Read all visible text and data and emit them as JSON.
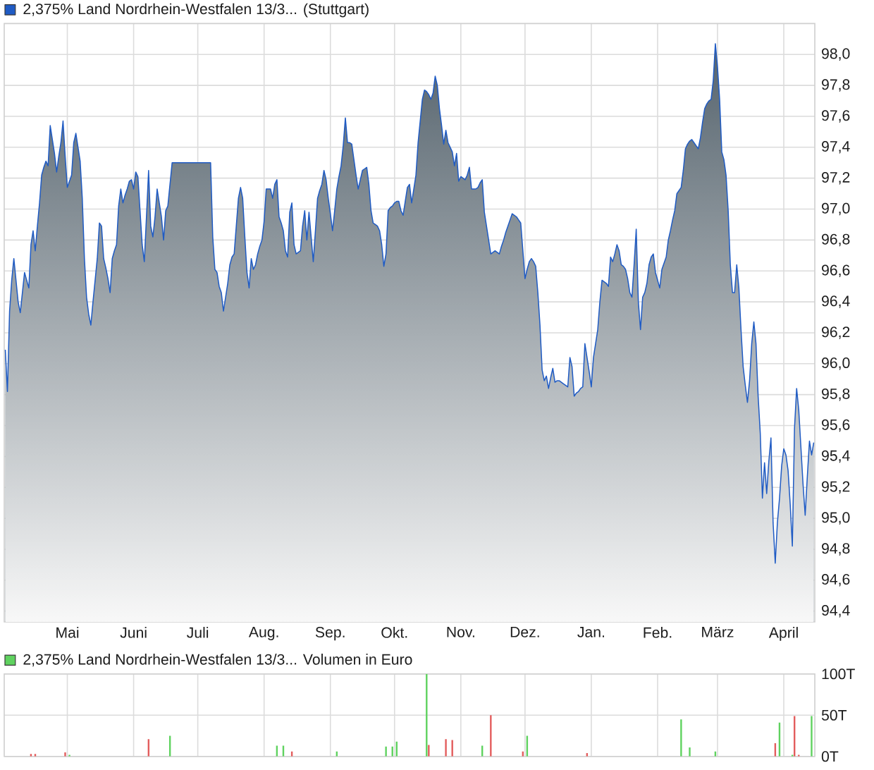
{
  "chart_data": [
    {
      "type": "area",
      "legend": "top left",
      "grid": true,
      "categories": [
        null,
        null,
        null,
        null,
        null,
        null,
        null,
        null,
        null,
        null,
        null,
        null,
        null,
        null,
        null,
        null,
        null,
        null,
        null,
        null,
        null,
        null,
        null,
        null,
        null,
        null,
        null,
        null,
        null,
        "Mai",
        null,
        null,
        null,
        null,
        null,
        null,
        null,
        null,
        null,
        null,
        null,
        null,
        null,
        null,
        null,
        null,
        null,
        null,
        null,
        null,
        null,
        null,
        null,
        null,
        null,
        null,
        null,
        null,
        null,
        null,
        "Juni",
        null,
        null,
        null,
        null,
        null,
        null,
        null,
        null,
        null,
        null,
        null,
        null,
        null,
        null,
        null,
        null,
        null,
        null,
        null,
        null,
        null,
        null,
        null,
        null,
        null,
        null,
        null,
        null,
        null,
        "Juli",
        null,
        null,
        null,
        null,
        null,
        null,
        null,
        null,
        null,
        null,
        null,
        null,
        null,
        null,
        null,
        null,
        null,
        null,
        null,
        null,
        null,
        null,
        null,
        null,
        null,
        null,
        null,
        null,
        null,
        null,
        "Aug.",
        null,
        null,
        null,
        null,
        null,
        null,
        null,
        null,
        null,
        null,
        null,
        null,
        null,
        null,
        null,
        null,
        null,
        null,
        null,
        null,
        null,
        null,
        null,
        null,
        null,
        null,
        null,
        null,
        null,
        null,
        "Sep.",
        null,
        null,
        null,
        null,
        null,
        null,
        null,
        null,
        null,
        null,
        null,
        null,
        null,
        null,
        null,
        null,
        null,
        null,
        null,
        null,
        null,
        null,
        null,
        null,
        null,
        null,
        null,
        null,
        null,
        "Okt.",
        null,
        null,
        null,
        null,
        null,
        null,
        null,
        null,
        null,
        null,
        null,
        null,
        null,
        null,
        null,
        null,
        null,
        null,
        null,
        null,
        null,
        null,
        null,
        null,
        null,
        null,
        null,
        null,
        null,
        null,
        "Nov.",
        null,
        null,
        null,
        null,
        null,
        null,
        null,
        null,
        null,
        null,
        null,
        null,
        null,
        null,
        null,
        null,
        null,
        null,
        null,
        null,
        null,
        null,
        null,
        null,
        null,
        null,
        null,
        null,
        null,
        "Dez.",
        null,
        null,
        null,
        null,
        null,
        null,
        null,
        null,
        null,
        null,
        null,
        null,
        null,
        null,
        null,
        null,
        null,
        null,
        null,
        null,
        null,
        null,
        null,
        null,
        null,
        null,
        null,
        null,
        null,
        null,
        "Jan.",
        null,
        null,
        null,
        null,
        null,
        null,
        null,
        null,
        null,
        null,
        null,
        null,
        null,
        null,
        null,
        null,
        null,
        null,
        null,
        null,
        null,
        null,
        null,
        null,
        null,
        null,
        null,
        null,
        null,
        null,
        "Feb.",
        null,
        null,
        null,
        null,
        null,
        null,
        null,
        null,
        null,
        null,
        null,
        null,
        null,
        null,
        null,
        null,
        null,
        null,
        null,
        null,
        null,
        null,
        null,
        null,
        null,
        null,
        null,
        "März",
        null,
        null,
        null,
        null,
        null,
        null,
        null,
        null,
        null,
        null,
        null,
        null,
        null,
        null,
        null,
        null,
        null,
        null,
        null,
        null,
        null,
        null,
        null,
        null,
        null,
        null,
        null,
        null,
        null,
        null,
        "April",
        null,
        null,
        null,
        null,
        null,
        null,
        null,
        null,
        null,
        null,
        null,
        null,
        null,
        null
      ],
      "ylim": [
        94.33,
        98.2
      ],
      "yticks": [
        {
          "value": 94.4,
          "label": "94,4"
        },
        {
          "value": 94.6,
          "label": "94,6"
        },
        {
          "value": 94.8,
          "label": "94,8"
        },
        {
          "value": 95.0,
          "label": "95,0"
        },
        {
          "value": 95.2,
          "label": "95,2"
        },
        {
          "value": 95.4,
          "label": "95,4"
        },
        {
          "value": 95.6,
          "label": "95,6"
        },
        {
          "value": 95.8,
          "label": "95,8"
        },
        {
          "value": 96.0,
          "label": "96,0"
        },
        {
          "value": 96.2,
          "label": "96,2"
        },
        {
          "value": 96.4,
          "label": "96,4"
        },
        {
          "value": 96.6,
          "label": "96,6"
        },
        {
          "value": 96.8,
          "label": "96,8"
        },
        {
          "value": 97.0,
          "label": "97,0"
        },
        {
          "value": 97.2,
          "label": "97,2"
        },
        {
          "value": 97.4,
          "label": "97,4"
        },
        {
          "value": 97.6,
          "label": "97,6"
        },
        {
          "value": 97.8,
          "label": "97,8"
        },
        {
          "value": 98.0,
          "label": "98,0"
        }
      ],
      "series": [
        {
          "name": "2,375% Land Nordrhein-Westfalen 13/3... (Stuttgart)",
          "color": "#1f5bc4",
          "values": [
            96.09,
            95.82,
            96.34,
            96.54,
            96.68,
            96.54,
            96.4,
            96.33,
            96.46,
            96.59,
            96.54,
            96.49,
            96.77,
            96.86,
            96.73,
            96.89,
            97.04,
            97.22,
            97.27,
            97.31,
            97.28,
            97.54,
            97.45,
            97.36,
            97.24,
            97.34,
            97.43,
            97.57,
            97.34,
            97.14,
            97.18,
            97.22,
            97.43,
            97.49,
            97.4,
            97.31,
            97.07,
            96.68,
            96.43,
            96.32,
            96.25,
            96.4,
            96.54,
            96.68,
            96.91,
            96.89,
            96.68,
            96.62,
            96.55,
            96.46,
            96.68,
            96.73,
            96.77,
            97.02,
            97.13,
            97.04,
            97.09,
            97.13,
            97.18,
            97.19,
            97.13,
            97.24,
            97.21,
            96.99,
            96.77,
            96.66,
            96.95,
            97.25,
            96.89,
            96.82,
            96.95,
            97.13,
            97.04,
            96.95,
            96.8,
            96.99,
            97.02,
            97.16,
            97.3,
            97.3,
            97.3,
            97.3,
            97.3,
            97.3,
            97.3,
            97.3,
            97.3,
            97.3,
            97.3,
            97.3,
            97.3,
            97.3,
            97.3,
            97.3,
            97.3,
            97.3,
            97.3,
            96.82,
            96.61,
            96.59,
            96.5,
            96.46,
            96.34,
            96.43,
            96.52,
            96.64,
            96.69,
            96.71,
            96.89,
            97.07,
            97.14,
            97.07,
            96.82,
            96.59,
            96.49,
            96.68,
            96.61,
            96.64,
            96.71,
            96.76,
            96.8,
            96.92,
            97.13,
            97.13,
            97.13,
            97.07,
            97.16,
            97.19,
            96.95,
            96.91,
            96.86,
            96.73,
            96.69,
            96.98,
            97.04,
            96.77,
            96.71,
            96.72,
            96.73,
            96.89,
            96.99,
            96.8,
            96.98,
            96.82,
            96.66,
            96.86,
            97.07,
            97.12,
            97.16,
            97.25,
            97.19,
            97.07,
            96.97,
            96.86,
            96.99,
            97.13,
            97.21,
            97.28,
            97.41,
            97.59,
            97.43,
            97.43,
            97.42,
            97.32,
            97.22,
            97.13,
            97.19,
            97.25,
            97.26,
            97.27,
            97.16,
            96.99,
            96.91,
            96.9,
            96.89,
            96.86,
            96.77,
            96.63,
            96.71,
            96.99,
            97.01,
            97.02,
            97.04,
            97.05,
            97.05,
            96.99,
            96.96,
            97.05,
            97.14,
            97.16,
            97.04,
            97.13,
            97.22,
            97.43,
            97.57,
            97.71,
            97.77,
            97.76,
            97.74,
            97.71,
            97.75,
            97.86,
            97.8,
            97.65,
            97.54,
            97.42,
            97.51,
            97.43,
            97.4,
            97.37,
            97.28,
            97.36,
            97.18,
            97.21,
            97.2,
            97.19,
            97.22,
            97.27,
            97.13,
            97.13,
            97.13,
            97.14,
            97.17,
            97.19,
            96.98,
            96.89,
            96.8,
            96.71,
            96.72,
            96.73,
            96.72,
            96.71,
            96.76,
            96.8,
            96.85,
            96.89,
            96.93,
            96.97,
            96.96,
            96.95,
            96.93,
            96.91,
            96.73,
            96.55,
            96.61,
            96.66,
            96.68,
            96.66,
            96.63,
            96.46,
            96.25,
            95.96,
            95.89,
            95.92,
            95.84,
            95.91,
            95.97,
            95.88,
            95.89,
            95.89,
            95.88,
            95.87,
            95.86,
            95.85,
            96.04,
            95.98,
            95.79,
            95.81,
            95.82,
            95.84,
            95.85,
            96.13,
            96.04,
            95.95,
            95.85,
            96.04,
            96.13,
            96.22,
            96.4,
            96.54,
            96.53,
            96.52,
            96.5,
            96.69,
            96.66,
            96.71,
            96.77,
            96.73,
            96.64,
            96.63,
            96.61,
            96.55,
            96.46,
            96.43,
            96.64,
            96.87,
            96.4,
            96.22,
            96.43,
            96.46,
            96.52,
            96.64,
            96.69,
            96.71,
            96.59,
            96.54,
            96.49,
            96.61,
            96.65,
            96.69,
            96.8,
            96.86,
            96.93,
            96.99,
            97.1,
            97.12,
            97.14,
            97.25,
            97.39,
            97.42,
            97.44,
            97.45,
            97.43,
            97.41,
            97.39,
            97.46,
            97.56,
            97.65,
            97.68,
            97.7,
            97.71,
            97.83,
            98.07,
            97.92,
            97.71,
            97.37,
            97.32,
            97.22,
            96.99,
            96.64,
            96.46,
            96.46,
            96.64,
            96.49,
            96.22,
            95.98,
            95.86,
            95.75,
            95.89,
            96.13,
            96.27,
            96.13,
            95.79,
            95.55,
            95.13,
            95.36,
            95.16,
            95.37,
            95.52,
            94.97,
            94.71,
            94.97,
            95.13,
            95.34,
            95.45,
            95.41,
            95.31,
            95.09,
            94.82,
            95.58,
            95.84,
            95.7,
            95.46,
            95.22,
            95.02,
            95.27,
            95.5,
            95.41,
            95.49
          ]
        }
      ]
    },
    {
      "type": "bar",
      "legend": "top left",
      "grid": true,
      "categories": [
        null,
        null,
        null,
        null,
        null,
        null,
        null,
        null,
        null,
        null,
        null,
        null,
        null,
        null,
        null,
        null,
        null,
        null,
        null,
        null,
        null,
        null,
        null,
        null,
        null,
        null,
        null,
        null,
        null,
        null,
        null,
        null,
        null,
        null,
        null,
        null,
        null,
        null,
        null,
        null,
        null,
        null,
        null,
        null,
        null,
        null,
        null,
        null,
        null,
        null,
        null,
        null,
        null,
        null,
        null,
        null,
        null,
        null,
        null,
        null,
        null,
        null,
        null,
        null,
        null,
        null,
        null,
        null,
        null,
        null,
        null,
        null,
        null,
        null,
        null,
        null,
        null,
        null,
        null,
        null,
        null,
        null,
        null,
        null,
        null,
        null,
        null,
        null,
        null,
        null,
        null,
        null,
        null,
        null,
        null,
        null,
        null,
        null,
        null,
        null,
        null,
        null,
        null,
        null,
        null,
        null,
        null,
        null,
        null,
        null,
        null,
        null,
        null,
        null,
        null,
        null,
        null,
        null,
        null,
        null,
        null,
        null,
        null,
        null,
        null,
        null,
        null,
        null,
        null,
        null,
        null,
        null,
        null,
        null,
        null,
        null,
        null,
        null,
        null,
        null,
        null,
        null,
        null,
        null,
        null,
        null,
        null,
        null,
        null,
        null,
        null,
        null,
        null,
        null,
        null,
        null,
        null,
        null,
        null,
        null,
        null,
        null,
        null,
        null,
        null,
        null,
        null,
        null,
        null,
        null,
        null,
        null,
        null,
        null,
        null,
        null,
        null,
        null,
        null,
        null,
        null,
        null,
        null,
        null,
        null,
        null,
        null,
        null,
        null,
        null,
        null,
        null,
        null,
        null,
        null,
        null,
        null,
        null,
        null,
        null,
        null,
        null,
        null,
        null,
        null,
        null,
        null,
        null,
        null,
        null,
        null,
        null,
        null,
        null,
        null,
        null,
        null,
        null,
        null,
        null,
        null,
        null,
        null,
        null,
        null,
        null,
        null,
        null,
        null,
        null,
        null,
        null,
        null,
        null,
        null,
        null,
        null,
        null,
        null,
        null,
        null,
        null,
        null,
        null,
        null,
        null,
        null,
        null,
        null,
        null,
        null,
        null,
        null,
        null,
        null,
        null,
        null,
        null,
        null,
        null,
        null,
        null,
        null,
        null,
        null,
        null,
        null,
        null,
        null,
        null,
        null,
        null,
        null,
        null,
        null,
        null,
        null,
        null,
        null,
        null,
        null,
        null,
        null,
        null,
        null,
        null,
        null,
        null,
        null,
        null,
        null,
        null,
        null,
        null,
        null,
        null,
        null,
        null,
        null,
        null,
        null,
        null,
        null,
        null,
        null,
        null,
        null,
        null,
        null,
        null,
        null,
        null,
        null,
        null,
        null,
        null,
        null,
        null,
        null,
        null,
        null,
        null,
        null,
        null,
        null,
        null,
        null,
        null,
        null,
        null,
        null,
        null,
        null,
        null,
        null,
        null,
        null,
        null,
        null,
        null,
        null,
        null,
        null,
        null,
        null,
        null,
        null,
        null,
        null,
        null,
        null,
        null,
        null,
        null,
        null,
        null,
        null,
        null,
        null,
        null,
        null,
        null,
        null,
        null,
        null,
        null,
        null,
        null,
        null,
        null,
        null,
        null,
        null,
        null,
        null,
        null,
        null,
        null,
        null
      ],
      "ylim": [
        0,
        100
      ],
      "yticks": [
        {
          "value": 0,
          "label": "0T"
        },
        {
          "value": 50,
          "label": "50T"
        },
        {
          "value": 100,
          "label": "100T"
        }
      ],
      "series": [
        {
          "name": "2,375% Land Nordrhein-Westfalen 13/3... Volumen in Euro",
          "color": "#5fd25f",
          "values": [
            null,
            null,
            null,
            null,
            null,
            null,
            null,
            null,
            null,
            null,
            null,
            null,
            null,
            null,
            null,
            null,
            null,
            null,
            null,
            null,
            null,
            null,
            null,
            null,
            null,
            null,
            null,
            null,
            null,
            null,
            2,
            null,
            null,
            null,
            null,
            null,
            null,
            null,
            null,
            null,
            null,
            null,
            null,
            null,
            null,
            null,
            null,
            null,
            null,
            null,
            null,
            null,
            null,
            null,
            null,
            null,
            null,
            null,
            null,
            null,
            null,
            null,
            null,
            null,
            null,
            null,
            null,
            null,
            null,
            null,
            null,
            null,
            null,
            null,
            null,
            null,
            null,
            25,
            null,
            null,
            null,
            null,
            null,
            null,
            null,
            null,
            null,
            null,
            null,
            null,
            null,
            null,
            null,
            null,
            null,
            null,
            null,
            null,
            null,
            null,
            null,
            null,
            null,
            null,
            null,
            null,
            null,
            null,
            null,
            null,
            null,
            null,
            null,
            null,
            null,
            null,
            null,
            null,
            null,
            null,
            null,
            null,
            null,
            null,
            null,
            null,
            null,
            13,
            null,
            null,
            13,
            null,
            null,
            null,
            null,
            null,
            null,
            null,
            null,
            null,
            null,
            null,
            null,
            null,
            null,
            null,
            null,
            null,
            null,
            null,
            null,
            null,
            null,
            null,
            null,
            6,
            null,
            null,
            null,
            null,
            null,
            null,
            null,
            null,
            null,
            null,
            null,
            null,
            null,
            null,
            null,
            null,
            null,
            null,
            null,
            null,
            null,
            null,
            12,
            null,
            null,
            12,
            null,
            18,
            null,
            null,
            null,
            null,
            null,
            null,
            null,
            null,
            null,
            null,
            null,
            null,
            null,
            100,
            null,
            null,
            null,
            null,
            null,
            null,
            null,
            null,
            null,
            null,
            null,
            null,
            null,
            null,
            null,
            null,
            null,
            null,
            null,
            null,
            null,
            null,
            null,
            null,
            null,
            13,
            null,
            null,
            null,
            null,
            null,
            null,
            null,
            null,
            null,
            null,
            null,
            null,
            null,
            null,
            null,
            null,
            null,
            null,
            null,
            null,
            25,
            null,
            null,
            null,
            null,
            null,
            null,
            null,
            null,
            null,
            null,
            null,
            null,
            null,
            null,
            null,
            null,
            null,
            null,
            null,
            null,
            null,
            null,
            null,
            null,
            null,
            null,
            null,
            null,
            null,
            null,
            null,
            null,
            null,
            null,
            null,
            null,
            null,
            null,
            null,
            null,
            null,
            null,
            null,
            null,
            null,
            null,
            null,
            null,
            null,
            null,
            null,
            null,
            null,
            null,
            null,
            null,
            null,
            null,
            null,
            null,
            null,
            null,
            null,
            null,
            null,
            null,
            null,
            null,
            null,
            null,
            null,
            45,
            null,
            null,
            null,
            11,
            null,
            null,
            null,
            null,
            null,
            null,
            null,
            null,
            null,
            null,
            null,
            6,
            null,
            null,
            null,
            null,
            null,
            null,
            null,
            null,
            null,
            null,
            null,
            null,
            null,
            null,
            null,
            null,
            null,
            null,
            null,
            null,
            null,
            null,
            null,
            null,
            null,
            null,
            null,
            null,
            null,
            41,
            null,
            null,
            null,
            null,
            null,
            2,
            null,
            null,
            null,
            null,
            null,
            null,
            null,
            null,
            49,
            null
          ]
        },
        {
          "color": "#e35d5d",
          "values": [
            null,
            null,
            null,
            null,
            null,
            null,
            null,
            null,
            null,
            null,
            null,
            null,
            3,
            null,
            3,
            null,
            null,
            null,
            null,
            null,
            null,
            null,
            null,
            null,
            null,
            null,
            null,
            null,
            5,
            null,
            null,
            null,
            null,
            null,
            null,
            null,
            null,
            null,
            null,
            null,
            null,
            null,
            null,
            null,
            null,
            null,
            null,
            null,
            null,
            null,
            null,
            null,
            null,
            null,
            null,
            null,
            null,
            null,
            null,
            null,
            null,
            null,
            null,
            null,
            null,
            null,
            null,
            21,
            null,
            null,
            null,
            null,
            null,
            null,
            null,
            null,
            null,
            null,
            null,
            null,
            null,
            null,
            null,
            null,
            null,
            null,
            null,
            null,
            null,
            null,
            null,
            null,
            null,
            null,
            null,
            null,
            null,
            null,
            null,
            null,
            null,
            null,
            null,
            null,
            null,
            null,
            null,
            null,
            null,
            null,
            null,
            null,
            null,
            null,
            null,
            null,
            null,
            null,
            null,
            null,
            null,
            null,
            null,
            null,
            null,
            null,
            null,
            null,
            null,
            null,
            null,
            null,
            null,
            null,
            6,
            null,
            null,
            null,
            null,
            null,
            null,
            null,
            null,
            null,
            null,
            null,
            null,
            null,
            null,
            null,
            null,
            null,
            null,
            null,
            null,
            null,
            null,
            null,
            null,
            null,
            null,
            null,
            null,
            null,
            null,
            null,
            null,
            null,
            null,
            null,
            null,
            null,
            null,
            null,
            null,
            null,
            null,
            null,
            null,
            null,
            null,
            null,
            null,
            null,
            null,
            null,
            null,
            null,
            null,
            null,
            null,
            null,
            null,
            null,
            null,
            null,
            null,
            null,
            14,
            null,
            null,
            null,
            null,
            null,
            null,
            null,
            21,
            null,
            null,
            20,
            null,
            null,
            null,
            null,
            null,
            null,
            null,
            null,
            null,
            null,
            null,
            null,
            null,
            null,
            null,
            null,
            null,
            50,
            null,
            null,
            null,
            null,
            null,
            null,
            null,
            null,
            null,
            null,
            null,
            null,
            null,
            null,
            6,
            null,
            null,
            null,
            null,
            null,
            null,
            null,
            null,
            null,
            null,
            null,
            null,
            null,
            null,
            null,
            null,
            null,
            null,
            null,
            null,
            null,
            null,
            null,
            null,
            null,
            null,
            null,
            null,
            null,
            4,
            null,
            null,
            null,
            null,
            null,
            null,
            null,
            null,
            null,
            null,
            null,
            null,
            null,
            null,
            null,
            null,
            null,
            null,
            null,
            null,
            null,
            null,
            null,
            null,
            null,
            null,
            null,
            null,
            null,
            null,
            null,
            null,
            null,
            null,
            null,
            null,
            null,
            null,
            null,
            null,
            null,
            null,
            null,
            null,
            null,
            null,
            null,
            null,
            null,
            null,
            null,
            null,
            null,
            null,
            null,
            null,
            null,
            null,
            null,
            null,
            null,
            null,
            null,
            null,
            null,
            null,
            null,
            null,
            null,
            null,
            null,
            null,
            null,
            null,
            null,
            null,
            null,
            null,
            null,
            null,
            null,
            null,
            null,
            null,
            null,
            null,
            null,
            16,
            null,
            null,
            null,
            null,
            null,
            null,
            null,
            null,
            49,
            null,
            2,
            null,
            null,
            null,
            null,
            null,
            null,
            null
          ]
        }
      ]
    }
  ]
}
